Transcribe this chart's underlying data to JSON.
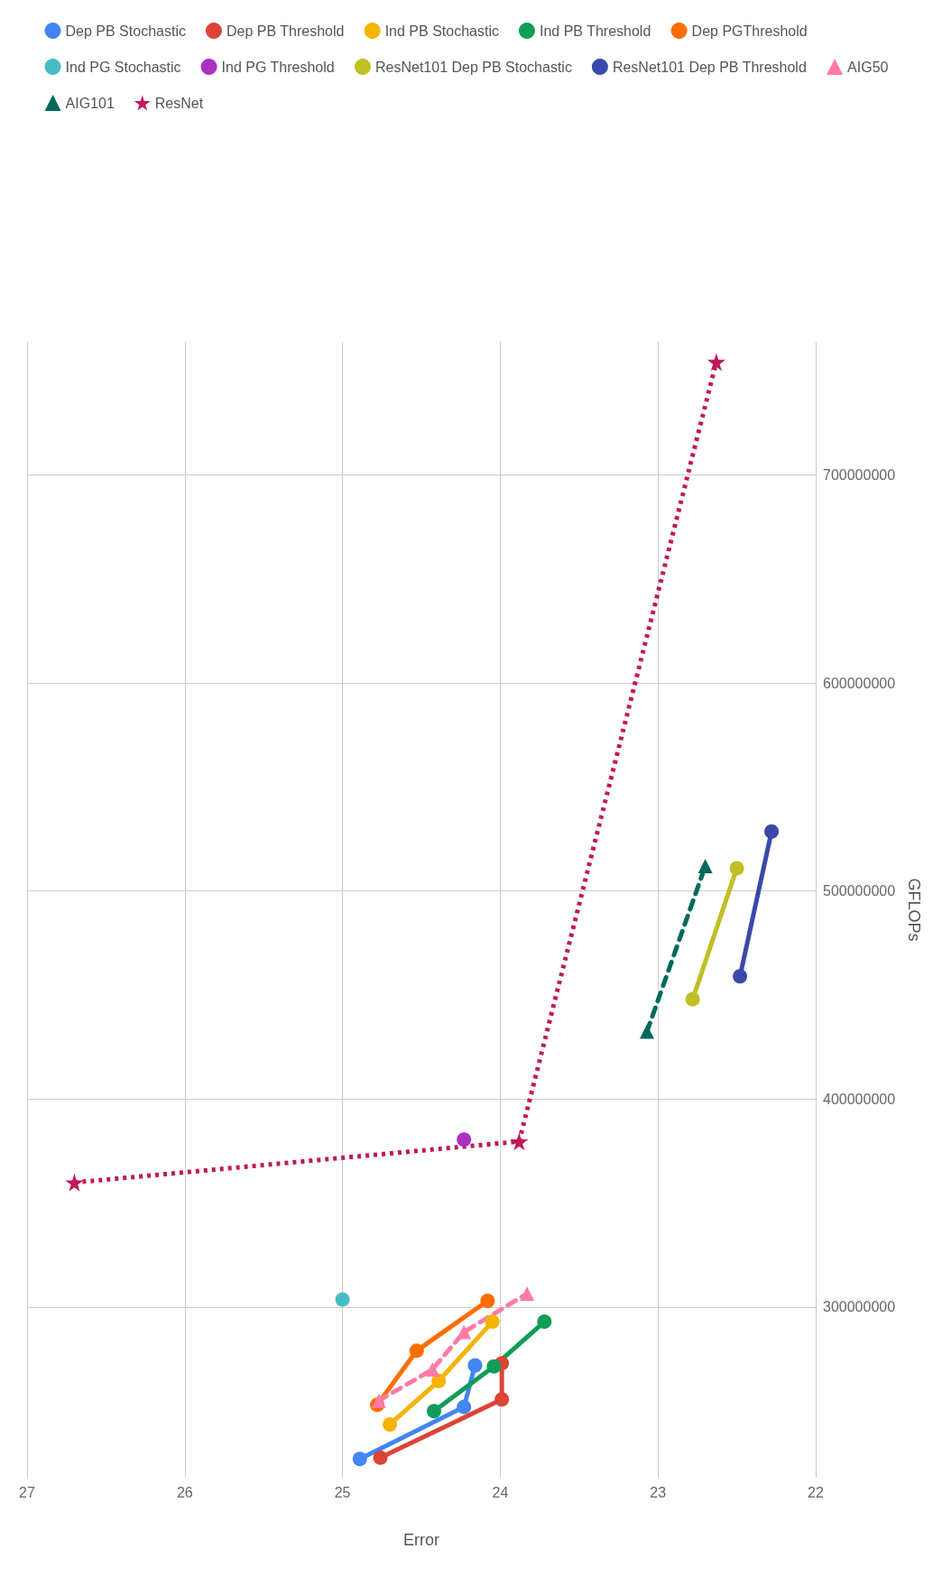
{
  "chart_data": {
    "type": "line",
    "xlabel": "Error",
    "ylabel": "GFLOPs",
    "xlim": [
      27,
      22
    ],
    "xticks": [
      27,
      26,
      25,
      24,
      23,
      22
    ],
    "ylim": [
      218000000,
      764000000
    ],
    "yticks": [
      300000000,
      400000000,
      500000000,
      600000000,
      700000000
    ],
    "grid": true,
    "legend": "top",
    "series": [
      {
        "name": "Dep PB Stochastic",
        "color": "#4285f4",
        "marker": "circle",
        "line_style": "solid",
        "x": [
          24.89,
          24.23,
          24.16
        ],
        "values": [
          227000000,
          252000000,
          272000000
        ]
      },
      {
        "name": "Dep PB Threshold",
        "color": "#db4437",
        "marker": "circle",
        "line_style": "solid",
        "x": [
          24.76,
          23.99,
          23.99
        ],
        "values": [
          227600000,
          255600000,
          273000000
        ]
      },
      {
        "name": "Ind PB Stochastic",
        "color": "#f4b400",
        "marker": "circle",
        "line_style": "solid",
        "x": [
          24.7,
          24.39,
          24.05
        ],
        "values": [
          243600000,
          264500000,
          293000000
        ]
      },
      {
        "name": "Ind PB Threshold",
        "color": "#0f9d58",
        "marker": "circle",
        "line_style": "solid",
        "x": [
          24.42,
          24.04,
          23.72
        ],
        "values": [
          250000000,
          271500000,
          293000000
        ]
      },
      {
        "name": "Dep PGThreshold",
        "color": "#ff6d00",
        "marker": "circle",
        "line_style": "solid",
        "x": [
          24.78,
          24.53,
          24.08
        ],
        "values": [
          253000000,
          279000000,
          303000000
        ]
      },
      {
        "name": "Ind PG Stochastic",
        "color": "#46bdc6",
        "marker": "circle",
        "line_style": "solid",
        "x": [
          25.0
        ],
        "values": [
          303600000
        ]
      },
      {
        "name": "Ind PG Threshold",
        "color": "#ab30c4",
        "marker": "circle",
        "line_style": "solid",
        "x": [
          24.23
        ],
        "values": [
          380500000
        ]
      },
      {
        "name": "ResNet101 Dep PB Stochastic",
        "color": "#c0bf24",
        "marker": "circle",
        "line_style": "solid",
        "x": [
          22.78,
          22.5
        ],
        "values": [
          448000000,
          511000000
        ]
      },
      {
        "name": "ResNet101 Dep PB Threshold",
        "color": "#3949ab",
        "marker": "circle",
        "line_style": "solid",
        "x": [
          22.48,
          22.28
        ],
        "values": [
          459000000,
          528600000
        ]
      },
      {
        "name": "AIG50",
        "color": "#ff7aa8",
        "marker": "triangle",
        "line_style": "dashed",
        "x": [
          24.77,
          24.43,
          24.23,
          23.83
        ],
        "values": [
          255000000,
          270000000,
          288000000,
          306500000
        ]
      },
      {
        "name": "AIG101",
        "color": "#00695c",
        "marker": "triangle",
        "line_style": "dashed",
        "x": [
          23.07,
          22.7
        ],
        "values": [
          432400000,
          512000000
        ]
      },
      {
        "name": "ResNet",
        "color": "#c2185b",
        "marker": "star",
        "line_style": "dotted",
        "x": [
          26.7,
          23.88,
          22.63
        ],
        "values": [
          359900000,
          379600000,
          754400000
        ]
      }
    ]
  }
}
